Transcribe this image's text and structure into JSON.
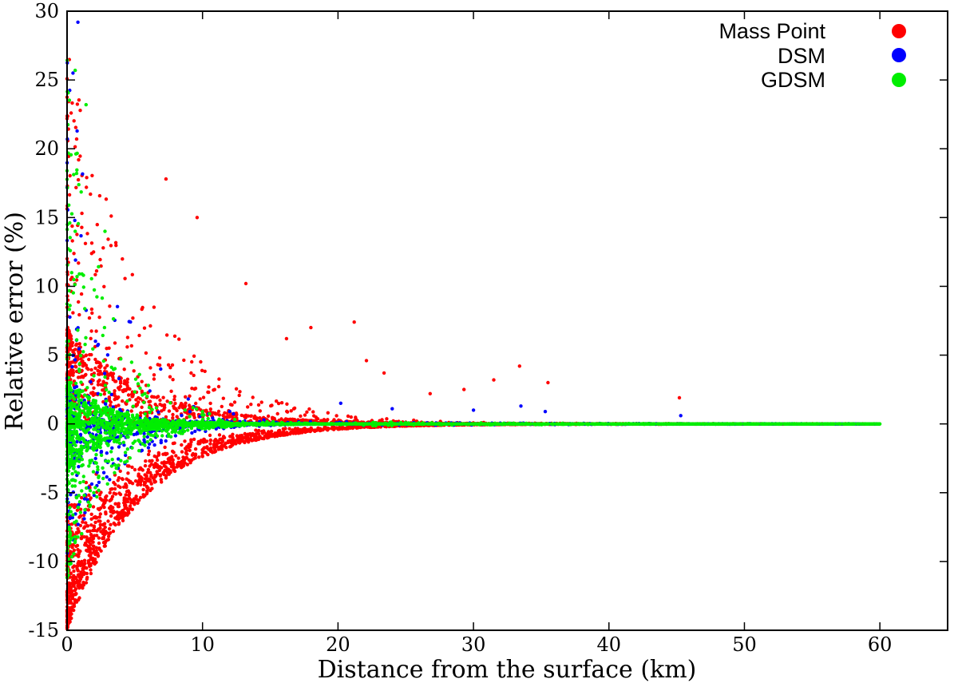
{
  "chart_data": {
    "type": "scatter",
    "title": "",
    "xlabel": "Distance from the surface (km)",
    "ylabel": "Relative error (%)",
    "xlim": [
      0,
      65
    ],
    "ylim": [
      -15,
      30
    ],
    "xticks": [
      0,
      10,
      20,
      30,
      40,
      50,
      60
    ],
    "yticks": [
      -15,
      -10,
      -5,
      0,
      5,
      10,
      15,
      20,
      25,
      30
    ],
    "grid": false,
    "legend_position": "top-right",
    "series": [
      {
        "name": "Mass Point",
        "color": "#ff0000",
        "envelope": {
          "upper_pct_at_0km": 28,
          "lower_pct_at_0km": -15,
          "decay_km": 5.5,
          "x_range_km": [
            0,
            60
          ]
        },
        "outliers": [
          [
            7.3,
            17.8
          ],
          [
            9.6,
            15.0
          ],
          [
            13.2,
            10.2
          ],
          [
            16.2,
            6.2
          ],
          [
            18.0,
            7.0
          ],
          [
            21.2,
            7.4
          ],
          [
            22.1,
            4.6
          ],
          [
            23.4,
            3.7
          ],
          [
            26.8,
            2.2
          ],
          [
            29.3,
            2.5
          ],
          [
            31.5,
            3.2
          ],
          [
            33.4,
            4.2
          ],
          [
            35.5,
            3.0
          ],
          [
            45.2,
            1.9
          ]
        ]
      },
      {
        "name": "DSM",
        "color": "#0000ff",
        "envelope": {
          "upper_pct_at_0km": 29,
          "lower_pct_at_0km": -10,
          "decay_km": 3.5,
          "x_range_km": [
            0,
            60
          ]
        },
        "outliers": [
          [
            0.8,
            29.2
          ],
          [
            20.2,
            1.5
          ],
          [
            24.0,
            1.1
          ],
          [
            30.0,
            1.0
          ],
          [
            33.5,
            1.3
          ],
          [
            35.3,
            0.9
          ],
          [
            45.3,
            0.6
          ]
        ]
      },
      {
        "name": "GDSM",
        "color": "#00ee00",
        "envelope": {
          "upper_pct_at_0km": 27,
          "lower_pct_at_0km": -12,
          "decay_km": 3.0,
          "x_range_km": [
            0,
            60
          ]
        },
        "outliers": [
          [
            0.6,
            25.7
          ],
          [
            1.4,
            23.2
          ],
          [
            2.8,
            14.0
          ]
        ]
      }
    ]
  }
}
